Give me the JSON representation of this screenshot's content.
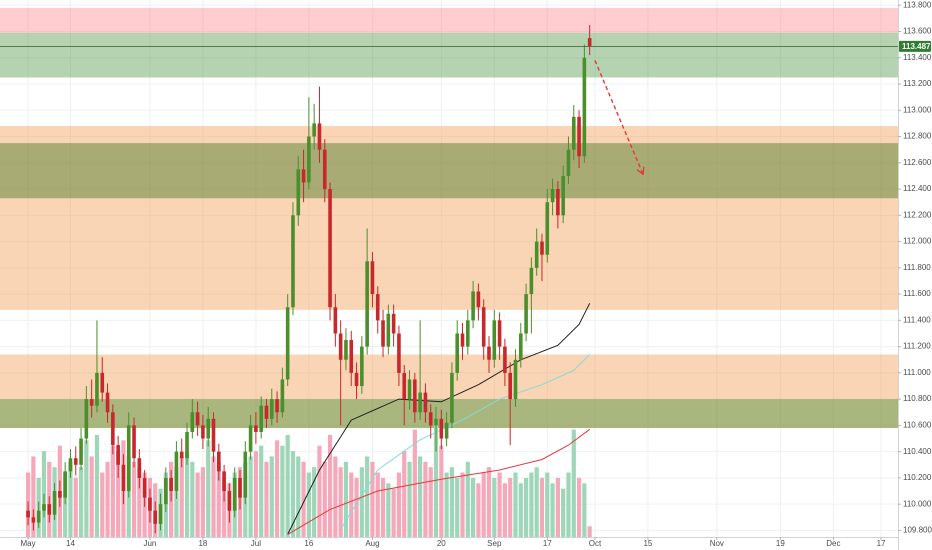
{
  "chart_data": {
    "type": "candlestick",
    "xlim": [
      -5.3,
      164.2
    ],
    "ylim": [
      109.75,
      113.84
    ],
    "y2lim": [
      0,
      500
    ],
    "grid": true,
    "yticks": [
      {
        "value": 109.8,
        "label": "109.800"
      },
      {
        "value": 110.0,
        "label": "110.000"
      },
      {
        "value": 110.2,
        "label": "110.200"
      },
      {
        "value": 110.4,
        "label": "110.400"
      },
      {
        "value": 110.6,
        "label": "110.600"
      },
      {
        "value": 110.8,
        "label": "110.800"
      },
      {
        "value": 111.0,
        "label": "111.000"
      },
      {
        "value": 111.2,
        "label": "111.200"
      },
      {
        "value": 111.4,
        "label": "111.400"
      },
      {
        "value": 111.6,
        "label": "111.600"
      },
      {
        "value": 111.8,
        "label": "111.800"
      },
      {
        "value": 112.0,
        "label": "112.000"
      },
      {
        "value": 112.2,
        "label": "112.200"
      },
      {
        "value": 112.4,
        "label": "112.400"
      },
      {
        "value": 112.6,
        "label": "112.600"
      },
      {
        "value": 112.8,
        "label": "112.800"
      },
      {
        "value": 113.0,
        "label": "113.000"
      },
      {
        "value": 113.2,
        "label": "113.200"
      },
      {
        "value": 113.4,
        "label": "113.400"
      },
      {
        "value": 113.6,
        "label": "113.600"
      },
      {
        "value": 113.8,
        "label": "113.800"
      }
    ],
    "xticks": [
      {
        "value": 0,
        "label": "May"
      },
      {
        "value": 8,
        "label": "14"
      },
      {
        "value": 23,
        "label": "Jun"
      },
      {
        "value": 33,
        "label": "18"
      },
      {
        "value": 43,
        "label": "Jul"
      },
      {
        "value": 53,
        "label": "16"
      },
      {
        "value": 65,
        "label": "Aug"
      },
      {
        "value": 78,
        "label": "20"
      },
      {
        "value": 88,
        "label": "Sep"
      },
      {
        "value": 98,
        "label": "17"
      },
      {
        "value": 107,
        "label": "Oct"
      },
      {
        "value": 117,
        "label": "15"
      },
      {
        "value": 130,
        "label": "Nov"
      },
      {
        "value": 142,
        "label": "19"
      },
      {
        "value": 152,
        "label": "Dec"
      },
      {
        "value": 161,
        "label": "17"
      }
    ],
    "up_color": "#4a8f2b",
    "down_color": "#c8272b",
    "candles": {
      "open": [
        109.95,
        109.9,
        109.86,
        109.95,
        110.0,
        109.92,
        110.1,
        110.05,
        110.25,
        110.35,
        110.3,
        110.5,
        110.8,
        110.75,
        111.0,
        110.85,
        110.7,
        110.45,
        110.3,
        110.1,
        110.6,
        110.35,
        110.2,
        110.05,
        109.95,
        109.85,
        110.0,
        110.2,
        110.1,
        110.4,
        110.35,
        110.55,
        110.7,
        110.6,
        110.5,
        110.65,
        110.4,
        110.25,
        110.1,
        109.95,
        110.2,
        110.05,
        110.4,
        110.6,
        110.55,
        110.75,
        110.65,
        110.8,
        110.7,
        110.95,
        111.5,
        112.2,
        112.55,
        112.45,
        112.8,
        112.9,
        112.7,
        112.4,
        111.5,
        111.3,
        111.1,
        111.25,
        111.0,
        110.9,
        111.2,
        111.85,
        111.6,
        111.4,
        111.2,
        111.45,
        111.3,
        111.0,
        110.8,
        110.95,
        110.7,
        110.85,
        110.7,
        110.6,
        110.65,
        110.5,
        110.62,
        111.0,
        111.3,
        111.2,
        111.4,
        111.62,
        111.5,
        111.2,
        111.1,
        111.4,
        111.2,
        111.0,
        110.8,
        111.1,
        111.3,
        111.6,
        111.8,
        112.0,
        111.9,
        112.3,
        112.4,
        112.2,
        112.5,
        112.7,
        112.95,
        112.65,
        113.55
      ],
      "high": [
        110.02,
        109.96,
        110.02,
        110.08,
        110.06,
        110.16,
        110.18,
        110.32,
        110.42,
        110.44,
        110.58,
        110.9,
        110.95,
        111.4,
        111.12,
        110.92,
        110.76,
        110.52,
        110.38,
        110.7,
        110.66,
        110.42,
        110.26,
        110.12,
        110.02,
        110.08,
        110.28,
        110.26,
        110.48,
        110.5,
        110.62,
        110.8,
        110.78,
        110.68,
        110.74,
        110.7,
        110.46,
        110.3,
        110.16,
        110.28,
        110.26,
        110.48,
        110.68,
        110.7,
        110.82,
        110.8,
        110.88,
        110.86,
        111.04,
        111.6,
        112.3,
        112.65,
        112.7,
        113.1,
        113.05,
        113.18,
        112.78,
        112.45,
        111.6,
        111.4,
        111.34,
        111.32,
        111.08,
        111.28,
        112.1,
        111.92,
        111.66,
        111.48,
        111.52,
        111.52,
        111.36,
        111.06,
        111.02,
        111.0,
        111.4,
        110.92,
        110.76,
        110.74,
        110.72,
        110.7,
        111.08,
        111.4,
        111.38,
        111.48,
        111.7,
        111.68,
        111.56,
        111.28,
        111.48,
        111.46,
        111.26,
        111.08,
        111.18,
        111.38,
        111.68,
        111.88,
        112.1,
        112.06,
        112.4,
        112.48,
        112.46,
        112.58,
        112.8,
        113.04,
        113.0,
        113.5,
        113.65
      ],
      "low": [
        109.84,
        109.8,
        109.82,
        109.9,
        109.86,
        109.88,
        109.98,
        110.0,
        110.2,
        110.22,
        110.26,
        110.46,
        110.66,
        110.7,
        110.78,
        110.62,
        110.38,
        110.2,
        110.0,
        110.05,
        110.28,
        110.12,
        109.98,
        109.86,
        109.78,
        109.8,
        109.94,
        110.02,
        110.04,
        110.28,
        110.3,
        110.5,
        110.52,
        110.42,
        110.44,
        110.32,
        110.18,
        110.02,
        109.86,
        109.9,
        109.96,
        110.0,
        110.34,
        110.46,
        110.5,
        110.58,
        110.6,
        110.62,
        110.66,
        110.9,
        111.44,
        112.12,
        112.3,
        112.4,
        112.7,
        112.6,
        112.3,
        111.4,
        111.2,
        110.6,
        111.02,
        110.9,
        110.8,
        110.84,
        111.14,
        111.5,
        111.3,
        111.12,
        111.14,
        111.2,
        110.9,
        110.6,
        110.72,
        110.62,
        110.64,
        110.62,
        110.5,
        110.4,
        110.42,
        110.44,
        110.58,
        110.94,
        111.1,
        111.14,
        111.34,
        111.4,
        111.1,
        111.0,
        111.04,
        111.1,
        110.9,
        110.45,
        110.74,
        111.04,
        111.24,
        111.3,
        111.74,
        111.7,
        111.84,
        112.2,
        112.1,
        112.14,
        112.44,
        112.62,
        112.56,
        112.6,
        113.42
      ],
      "close": [
        109.9,
        109.86,
        109.95,
        110.0,
        109.92,
        110.1,
        110.05,
        110.25,
        110.35,
        110.3,
        110.5,
        110.8,
        110.75,
        111.0,
        110.85,
        110.7,
        110.45,
        110.3,
        110.1,
        110.6,
        110.35,
        110.2,
        110.05,
        109.95,
        109.85,
        110.0,
        110.2,
        110.1,
        110.4,
        110.35,
        110.55,
        110.7,
        110.6,
        110.5,
        110.65,
        110.4,
        110.25,
        110.1,
        109.95,
        110.2,
        110.05,
        110.4,
        110.6,
        110.55,
        110.75,
        110.65,
        110.8,
        110.7,
        110.95,
        111.5,
        112.2,
        112.55,
        112.45,
        112.8,
        112.9,
        112.7,
        112.4,
        111.5,
        111.3,
        111.1,
        111.25,
        111.0,
        110.9,
        111.2,
        111.85,
        111.6,
        111.4,
        111.2,
        111.45,
        111.3,
        111.0,
        110.8,
        110.95,
        110.7,
        110.85,
        110.7,
        110.6,
        110.65,
        110.5,
        110.62,
        111.0,
        111.3,
        111.2,
        111.4,
        111.62,
        111.5,
        111.2,
        111.1,
        111.4,
        111.2,
        111.0,
        110.8,
        111.1,
        111.3,
        111.6,
        111.8,
        112.0,
        111.9,
        112.3,
        112.4,
        112.2,
        112.5,
        112.7,
        112.95,
        112.65,
        113.4,
        113.487
      ]
    },
    "volume": {
      "axis": "y2",
      "up_color": "#9ed6b8",
      "down_color": "#f5a8ba",
      "values": [
        60,
        75,
        55,
        80,
        70,
        65,
        85,
        60,
        70,
        55,
        65,
        90,
        75,
        95,
        60,
        70,
        85,
        80,
        90,
        75,
        70,
        65,
        60,
        55,
        50,
        45,
        60,
        70,
        65,
        75,
        80,
        70,
        60,
        65,
        90,
        75,
        70,
        55,
        50,
        60,
        65,
        70,
        75,
        80,
        85,
        70,
        75,
        90,
        85,
        95,
        80,
        75,
        70,
        60,
        65,
        85,
        70,
        95,
        75,
        65,
        70,
        60,
        55,
        65,
        75,
        70,
        60,
        55,
        50,
        45,
        60,
        80,
        70,
        100,
        75,
        70,
        65,
        110,
        85,
        60,
        65,
        55,
        60,
        70,
        55,
        50,
        60,
        65,
        55,
        60,
        50,
        55,
        60,
        50,
        55,
        60,
        65,
        55,
        60,
        50,
        55,
        45,
        60,
        100,
        55,
        50,
        10
      ]
    },
    "lines": [
      {
        "color": "#1f1f1f",
        "x": [
          49,
          55,
          61,
          70,
          78,
          85,
          93,
          100,
          104,
          106
        ],
        "values": [
          109.77,
          110.26,
          110.64,
          110.8,
          110.78,
          110.91,
          111.1,
          111.21,
          111.37,
          111.53
        ]
      },
      {
        "color": "#7fdcdc",
        "x": [
          59,
          66,
          74,
          82,
          89,
          97,
          103,
          106
        ],
        "values": [
          109.81,
          110.26,
          110.49,
          110.64,
          110.8,
          110.91,
          111.02,
          111.14
        ]
      },
      {
        "color": "#e0393e",
        "x": [
          49,
          57,
          66,
          78,
          89,
          97,
          102,
          106
        ],
        "values": [
          109.77,
          109.96,
          110.1,
          110.19,
          110.26,
          110.34,
          110.45,
          110.57
        ]
      }
    ],
    "zones": [
      {
        "color": "rgba(255,120,130,0.38)",
        "from": 113.59,
        "to": 113.78
      },
      {
        "color": "rgba(70,145,60,0.40)",
        "from": 113.25,
        "to": 113.59
      },
      {
        "color": "rgba(240,150,70,0.40)",
        "from": 111.48,
        "to": 112.88
      },
      {
        "color": "rgba(70,120,40,0.45)",
        "from": 112.33,
        "to": 112.75
      },
      {
        "color": "rgba(240,150,70,0.40)",
        "from": 110.58,
        "to": 111.14
      },
      {
        "color": "rgba(70,145,60,0.45)",
        "from": 110.58,
        "to": 110.8
      }
    ],
    "last_price": {
      "label": "113.487",
      "color": "#2e7d32"
    },
    "arrow": {
      "color": "#e53935",
      "x": [
        107,
        116
      ],
      "values": [
        113.38,
        112.52
      ]
    }
  }
}
